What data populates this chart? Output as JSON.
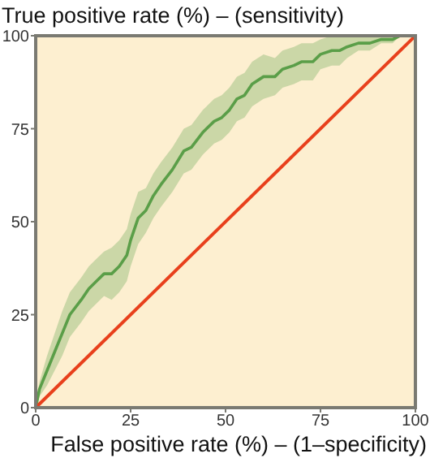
{
  "chart_data": {
    "type": "line",
    "xlabel": "False positive rate (%) – (1–specificity)",
    "ylabel": "True positive rate (%) – (sensitivity)",
    "xlim": [
      0,
      100
    ],
    "ylim": [
      0,
      100
    ],
    "xticks": [
      0,
      25,
      50,
      75,
      100
    ],
    "yticks": [
      0,
      25,
      50,
      75,
      100
    ],
    "grid": false,
    "marker": "none",
    "line_style": "solid",
    "series": [
      {
        "color": "#5a9e48",
        "x": [
          0,
          1,
          3,
          5,
          7,
          9,
          12,
          14,
          16,
          18,
          20,
          22,
          24,
          25,
          26,
          27,
          29,
          31,
          33,
          36,
          39,
          41,
          44,
          47,
          49,
          51,
          53,
          55,
          57,
          60,
          63,
          65,
          68,
          70,
          73,
          75,
          78,
          80,
          82,
          85,
          88,
          91,
          94,
          96,
          100
        ],
        "values": [
          0,
          5,
          10,
          15,
          20,
          25,
          29,
          32,
          34,
          36,
          36,
          38,
          41,
          45,
          48,
          51,
          53,
          57,
          60,
          64,
          69,
          70,
          74,
          77,
          78,
          80,
          83,
          84,
          87,
          89,
          89,
          91,
          92,
          93,
          93,
          95,
          96,
          96,
          97,
          98,
          98,
          99,
          99,
          100,
          100
        ],
        "lower": [
          0,
          3,
          6,
          10,
          14,
          19,
          23,
          26,
          28,
          30,
          29,
          31,
          34,
          38,
          41,
          44,
          47,
          51,
          54,
          58,
          63,
          64,
          68,
          71,
          72,
          74,
          77,
          78,
          81,
          83,
          84,
          86,
          87,
          88,
          88,
          91,
          92,
          92,
          94,
          96,
          96,
          98,
          98,
          100,
          100
        ],
        "upper": [
          0,
          7,
          14,
          20,
          26,
          31,
          35,
          38,
          40,
          42,
          43,
          45,
          48,
          52,
          55,
          58,
          59,
          63,
          66,
          70,
          75,
          76,
          80,
          83,
          84,
          86,
          89,
          90,
          93,
          95,
          94,
          96,
          97,
          98,
          98,
          99,
          100,
          100,
          100,
          100,
          100,
          100,
          100,
          100,
          100
        ]
      },
      {
        "color": "#e8401c",
        "x": [
          0,
          100
        ],
        "values": [
          0,
          100
        ]
      }
    ]
  }
}
